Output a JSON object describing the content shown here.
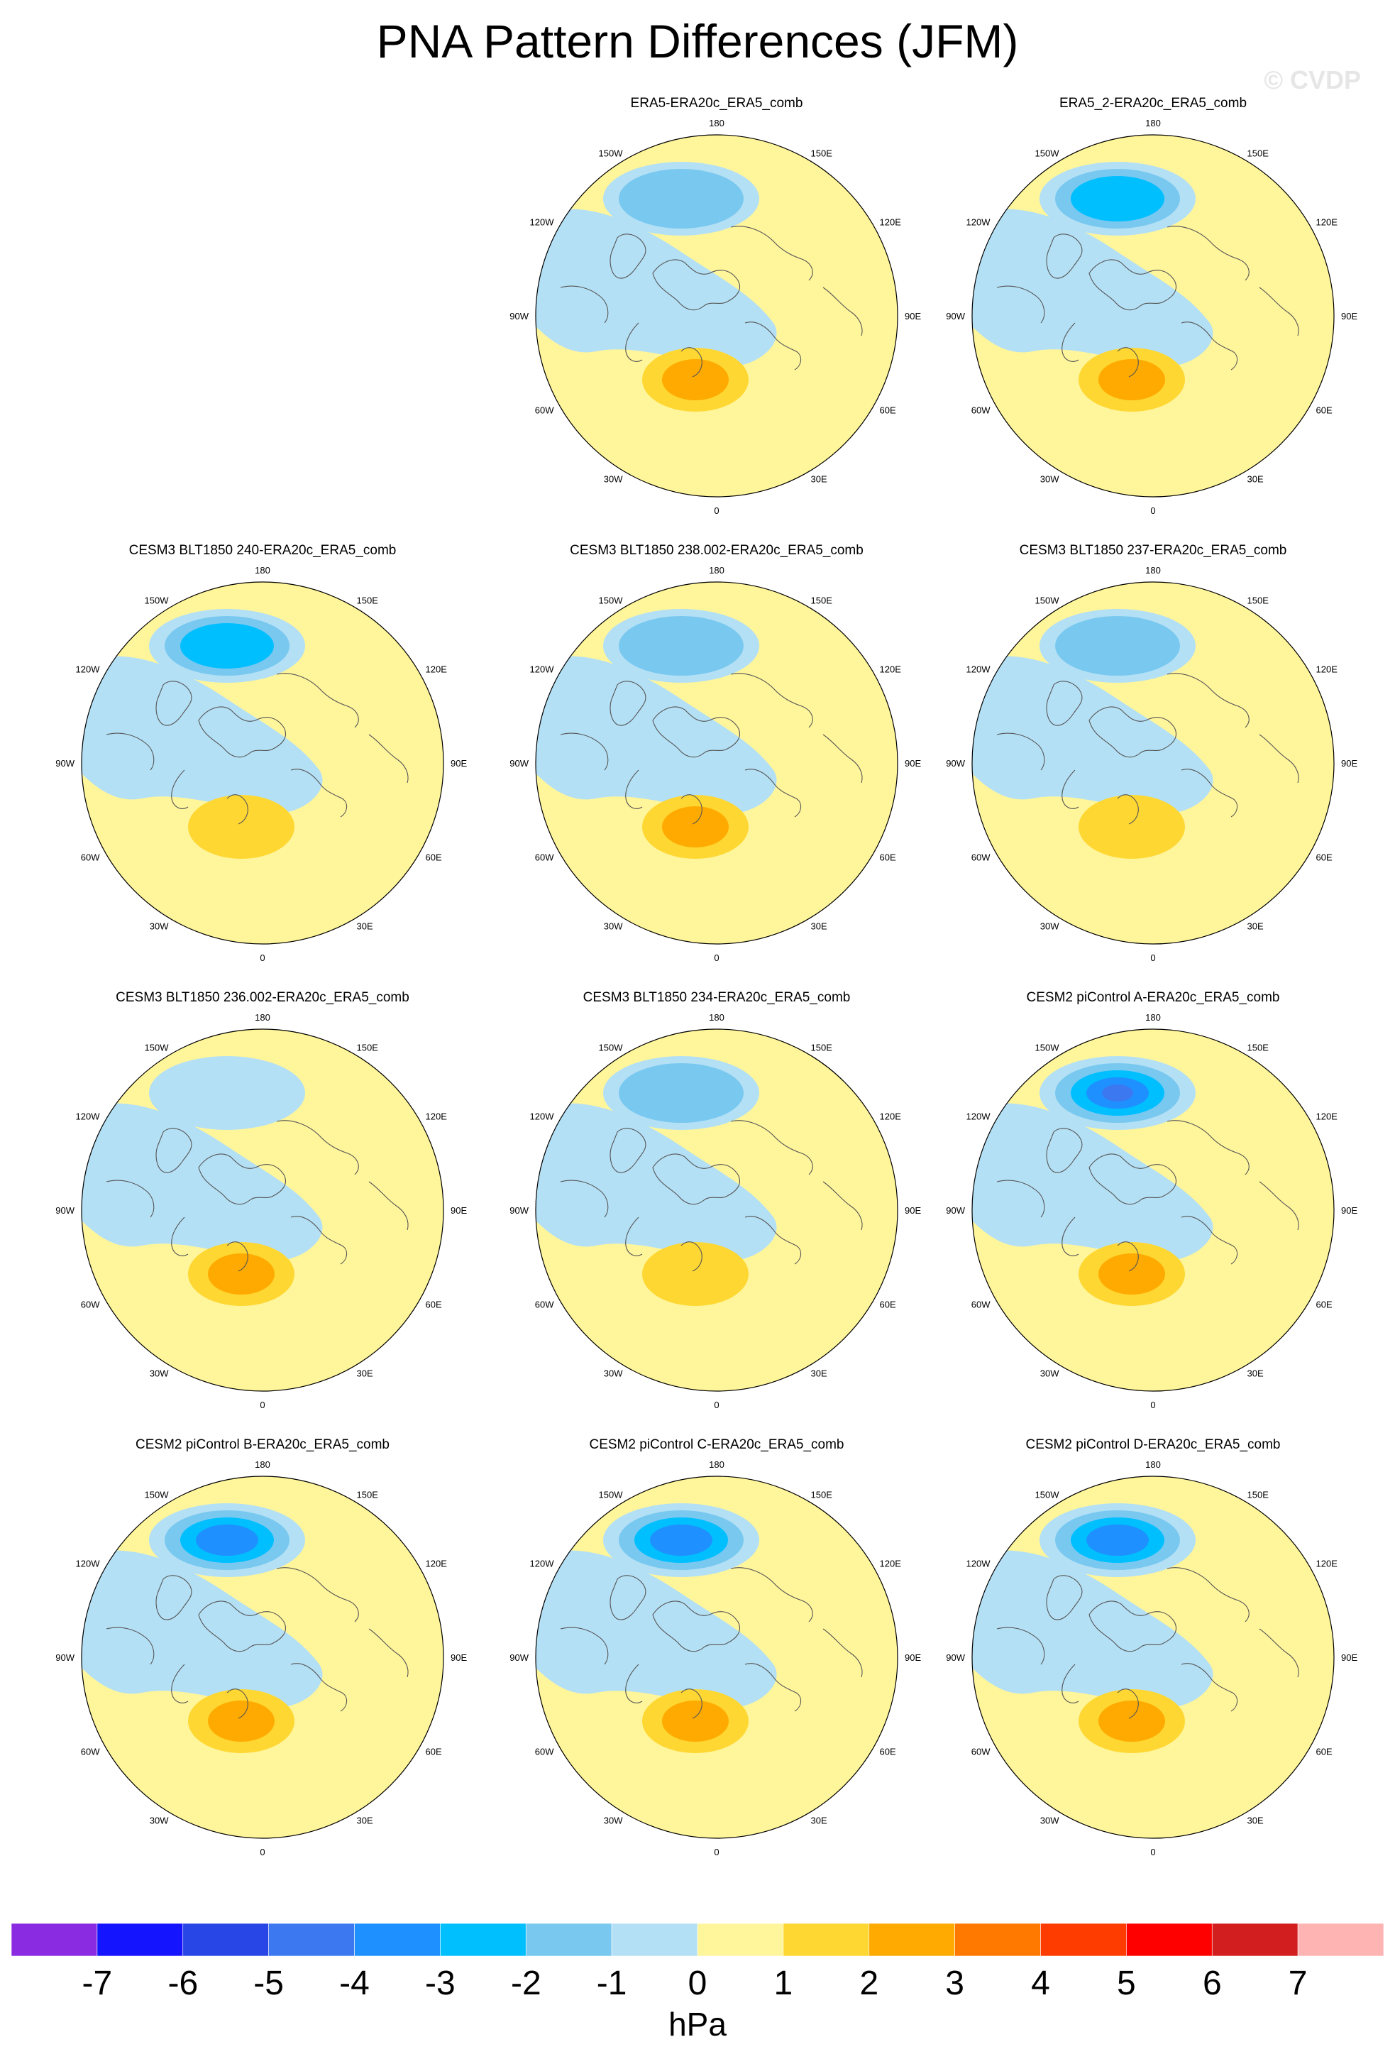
{
  "title": "PNA Pattern Differences (JFM)",
  "watermark": "© CVDP",
  "map_labels": {
    "lon_180": "180",
    "lon_150W": "150W",
    "lon_150E": "150E",
    "lon_120W": "120W",
    "lon_120E": "120E",
    "lon_90W": "90W",
    "lon_90E": "90E",
    "lon_60W": "60W",
    "lon_60E": "60E",
    "lon_30W": "30W",
    "lon_30E": "30E",
    "lon_0": "0"
  },
  "panels": [
    {
      "title": "ERA5-ERA20c_ERA5_comb",
      "pna_center_min_hPa": -1,
      "atlantic_max_hPa": 2
    },
    {
      "title": "ERA5_2-ERA20c_ERA5_comb",
      "pna_center_min_hPa": -2,
      "atlantic_max_hPa": 2
    },
    {
      "title": "CESM3 BLT1850 240-ERA20c_ERA5_comb",
      "pna_center_min_hPa": -2,
      "atlantic_max_hPa": 1
    },
    {
      "title": "CESM3 BLT1850 238.002-ERA20c_ERA5_comb",
      "pna_center_min_hPa": -1,
      "atlantic_max_hPa": 2
    },
    {
      "title": "CESM3 BLT1850 237-ERA20c_ERA5_comb",
      "pna_center_min_hPa": -1,
      "atlantic_max_hPa": 1
    },
    {
      "title": "CESM3 BLT1850 236.002-ERA20c_ERA5_comb",
      "pna_center_min_hPa": 0,
      "atlantic_max_hPa": 2
    },
    {
      "title": "CESM3 BLT1850 234-ERA20c_ERA5_comb",
      "pna_center_min_hPa": -1,
      "atlantic_max_hPa": 1
    },
    {
      "title": "CESM2 piControl A-ERA20c_ERA5_comb",
      "pna_center_min_hPa": -4,
      "atlantic_max_hPa": 2
    },
    {
      "title": "CESM2 piControl B-ERA20c_ERA5_comb",
      "pna_center_min_hPa": -3,
      "atlantic_max_hPa": 2
    },
    {
      "title": "CESM2 piControl C-ERA20c_ERA5_comb",
      "pna_center_min_hPa": -3,
      "atlantic_max_hPa": 2
    },
    {
      "title": "CESM2 piControl D-ERA20c_ERA5_comb",
      "pna_center_min_hPa": -3,
      "atlantic_max_hPa": 2
    }
  ],
  "colorbar": {
    "units": "hPa",
    "ticks": [
      "-7",
      "-6",
      "-5",
      "-4",
      "-3",
      "-2",
      "-1",
      "0",
      "1",
      "2",
      "3",
      "4",
      "5",
      "6",
      "7"
    ],
    "colors": [
      "#8a2be2",
      "#1414ff",
      "#2846e6",
      "#3c78f0",
      "#1e90ff",
      "#00bfff",
      "#78c8f0",
      "#b4e0f5",
      "#fff59b",
      "#ffd732",
      "#ffaa00",
      "#ff7800",
      "#ff3c00",
      "#ff0000",
      "#d21e1e",
      "#ffb4b4"
    ]
  }
}
